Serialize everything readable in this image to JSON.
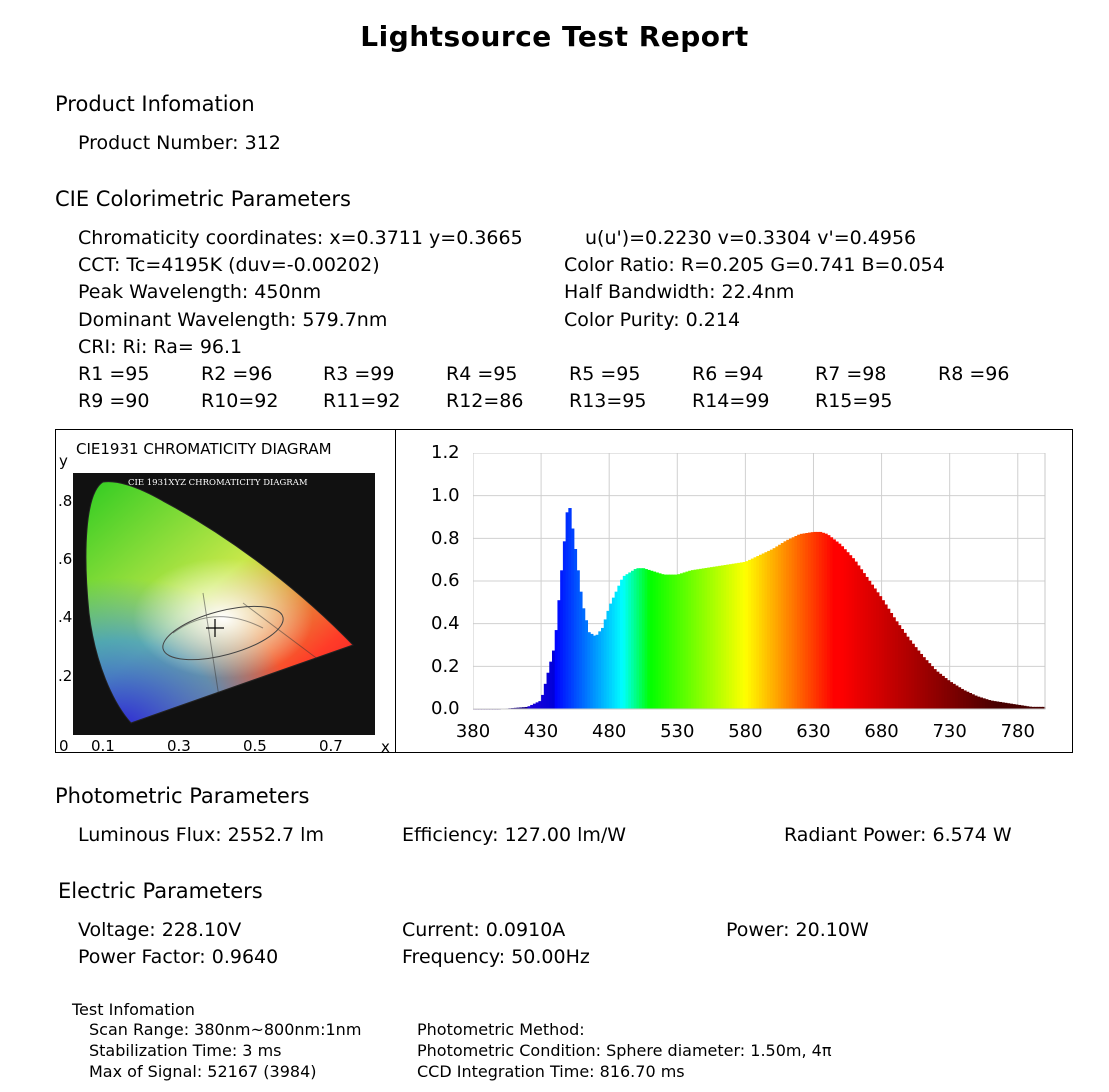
{
  "title": "Lightsource Test Report",
  "product": {
    "heading": "Product Infomation",
    "number": "Product Number: 312"
  },
  "cie": {
    "heading": "CIE Colorimetric Parameters",
    "chromaticity": "Chromaticity coordinates: x=0.3711 y=0.3665",
    "uv": "u(u')=0.2230 v=0.3304 v'=0.4956",
    "cct": "CCT: Tc=4195K (duv=-0.00202)",
    "color_ratio": "Color Ratio: R=0.205  G=0.741  B=0.054",
    "peak": "Peak Wavelength: 450nm",
    "half_bandwidth": "Half Bandwidth: 22.4nm",
    "dominant": "Dominant Wavelength: 579.7nm",
    "purity": "Color Purity: 0.214",
    "cri": "CRI: Ri: Ra= 96.1",
    "r_values": [
      [
        "R1 =95",
        "R2 =96",
        "R3 =99",
        "R4 =95",
        "R5 =95",
        "R6 =94",
        "R7 =98",
        "R8 =96"
      ],
      [
        "R9 =90",
        "R10=92",
        "R11=92",
        "R12=86",
        "R13=95",
        "R14=99",
        "R15=95"
      ]
    ]
  },
  "diagram": {
    "title": "CIE1931 CHROMATICITY DIAGRAM",
    "inner_title": "CIE 1931XYZ CHROMATICITY DIAGRAM",
    "y_axis_label": "y",
    "x_axis_label": "x",
    "y_ticks": [
      ".8",
      ".6",
      ".4",
      ".2"
    ],
    "x_ticks": [
      "0",
      "0.1",
      "0.3",
      "0.5",
      "0.7"
    ],
    "point": {
      "x": 0.3711,
      "y": 0.3665
    }
  },
  "chart_data": {
    "type": "area",
    "title": "",
    "xlabel": "",
    "ylabel": "",
    "xlim": [
      380,
      800
    ],
    "ylim": [
      0,
      1.2
    ],
    "x_ticks": [
      380,
      430,
      480,
      530,
      580,
      630,
      680,
      730,
      780
    ],
    "y_ticks": [
      "0.0",
      "0.2",
      "0.4",
      "0.6",
      "0.8",
      "1.0",
      "1.2"
    ],
    "grid": true,
    "fill": "spectral colors by wavelength",
    "x": [
      380,
      400,
      420,
      430,
      440,
      445,
      450,
      455,
      460,
      465,
      470,
      475,
      480,
      490,
      500,
      505,
      510,
      520,
      530,
      540,
      550,
      560,
      570,
      580,
      590,
      600,
      610,
      620,
      630,
      635,
      640,
      650,
      660,
      670,
      680,
      690,
      700,
      710,
      720,
      730,
      740,
      750,
      760,
      770,
      780,
      790,
      800
    ],
    "y": [
      0.0,
      0.0,
      0.01,
      0.04,
      0.3,
      0.65,
      0.99,
      0.75,
      0.5,
      0.36,
      0.34,
      0.38,
      0.48,
      0.62,
      0.66,
      0.66,
      0.65,
      0.63,
      0.63,
      0.65,
      0.66,
      0.67,
      0.68,
      0.69,
      0.72,
      0.75,
      0.79,
      0.82,
      0.83,
      0.83,
      0.82,
      0.77,
      0.7,
      0.61,
      0.52,
      0.42,
      0.33,
      0.25,
      0.18,
      0.13,
      0.09,
      0.06,
      0.04,
      0.03,
      0.02,
      0.01,
      0.01
    ]
  },
  "photometric": {
    "heading": "Photometric Parameters",
    "flux": "Luminous Flux: 2552.7 lm",
    "efficiency": "Efficiency: 127.00 lm/W",
    "radiant": "Radiant Power: 6.574 W"
  },
  "electric": {
    "heading": "Electric Parameters",
    "voltage": "Voltage: 228.10V",
    "current": "Current: 0.0910A",
    "power": "Power: 20.10W",
    "pf": "Power Factor: 0.9640",
    "frequency": "Frequency: 50.00Hz"
  },
  "test": {
    "heading": "Test Infomation",
    "scan": "Scan Range: 380nm~800nm:1nm",
    "stabilization": "Stabilization Time: 3 ms",
    "max_signal": "Max of Signal: 52167 (3984)",
    "method": "Photometric Method:",
    "condition": "Photometric Condition: Sphere diameter: 1.50m, 4π",
    "ccd": "CCD Integration Time: 816.70 ms"
  }
}
